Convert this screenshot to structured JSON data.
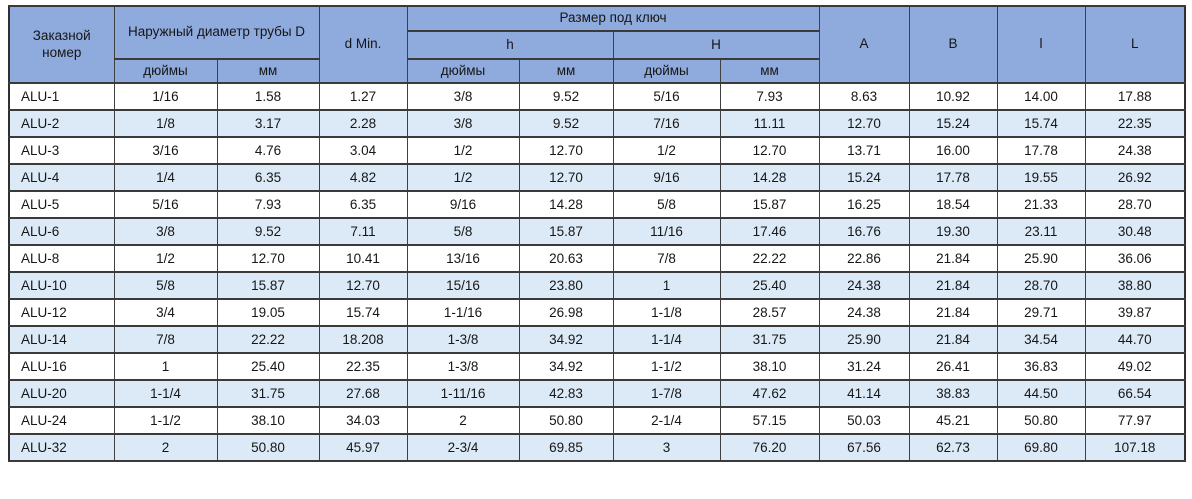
{
  "table": {
    "headers": {
      "order_number": "Заказной номер",
      "outer_diameter": "Наружный диаметр трубы D",
      "d_min": "d Min.",
      "wrench_size": "Размер под ключ",
      "h_lower": "h",
      "h_upper": "H",
      "inches": "дюймы",
      "mm": "мм",
      "col_a": "A",
      "col_b": "B",
      "col_l_lower": "l",
      "col_l_upper": "L"
    },
    "rows": [
      [
        "ALU-1",
        "1/16",
        "1.58",
        "1.27",
        "3/8",
        "9.52",
        "5/16",
        "7.93",
        "8.63",
        "10.92",
        "14.00",
        "17.88"
      ],
      [
        "ALU-2",
        "1/8",
        "3.17",
        "2.28",
        "3/8",
        "9.52",
        "7/16",
        "11.11",
        "12.70",
        "15.24",
        "15.74",
        "22.35"
      ],
      [
        "ALU-3",
        "3/16",
        "4.76",
        "3.04",
        "1/2",
        "12.70",
        "1/2",
        "12.70",
        "13.71",
        "16.00",
        "17.78",
        "24.38"
      ],
      [
        "ALU-4",
        "1/4",
        "6.35",
        "4.82",
        "1/2",
        "12.70",
        "9/16",
        "14.28",
        "15.24",
        "17.78",
        "19.55",
        "26.92"
      ],
      [
        "ALU-5",
        "5/16",
        "7.93",
        "6.35",
        "9/16",
        "14.28",
        "5/8",
        "15.87",
        "16.25",
        "18.54",
        "21.33",
        "28.70"
      ],
      [
        "ALU-6",
        "3/8",
        "9.52",
        "7.11",
        "5/8",
        "15.87",
        "11/16",
        "17.46",
        "16.76",
        "19.30",
        "23.11",
        "30.48"
      ],
      [
        "ALU-8",
        "1/2",
        "12.70",
        "10.41",
        "13/16",
        "20.63",
        "7/8",
        "22.22",
        "22.86",
        "21.84",
        "25.90",
        "36.06"
      ],
      [
        "ALU-10",
        "5/8",
        "15.87",
        "12.70",
        "15/16",
        "23.80",
        "1",
        "25.40",
        "24.38",
        "21.84",
        "28.70",
        "38.80"
      ],
      [
        "ALU-12",
        "3/4",
        "19.05",
        "15.74",
        "1-1/16",
        "26.98",
        "1-1/8",
        "28.57",
        "24.38",
        "21.84",
        "29.71",
        "39.87"
      ],
      [
        "ALU-14",
        "7/8",
        "22.22",
        "18.208",
        "1-3/8",
        "34.92",
        "1-1/4",
        "31.75",
        "25.90",
        "21.84",
        "34.54",
        "44.70"
      ],
      [
        "ALU-16",
        "1",
        "25.40",
        "22.35",
        "1-3/8",
        "34.92",
        "1-1/2",
        "38.10",
        "31.24",
        "26.41",
        "36.83",
        "49.02"
      ],
      [
        "ALU-20",
        "1-1/4",
        "31.75",
        "27.68",
        "1-11/16",
        "42.83",
        "1-7/8",
        "47.62",
        "41.14",
        "38.83",
        "44.50",
        "66.54"
      ],
      [
        "ALU-24",
        "1-1/2",
        "38.10",
        "34.03",
        "2",
        "50.80",
        "2-1/4",
        "57.15",
        "50.03",
        "45.21",
        "50.80",
        "77.97"
      ],
      [
        "ALU-32",
        "2",
        "50.80",
        "45.97",
        "2-3/4",
        "69.85",
        "3",
        "76.20",
        "67.56",
        "62.73",
        "69.80",
        "107.18"
      ]
    ]
  },
  "colors": {
    "header_bg": "#8FAADC",
    "alt_row_bg": "#DCEAF8",
    "row_bg": "#FFFFFF",
    "border": "#3A3A3A",
    "text": "#161616"
  }
}
